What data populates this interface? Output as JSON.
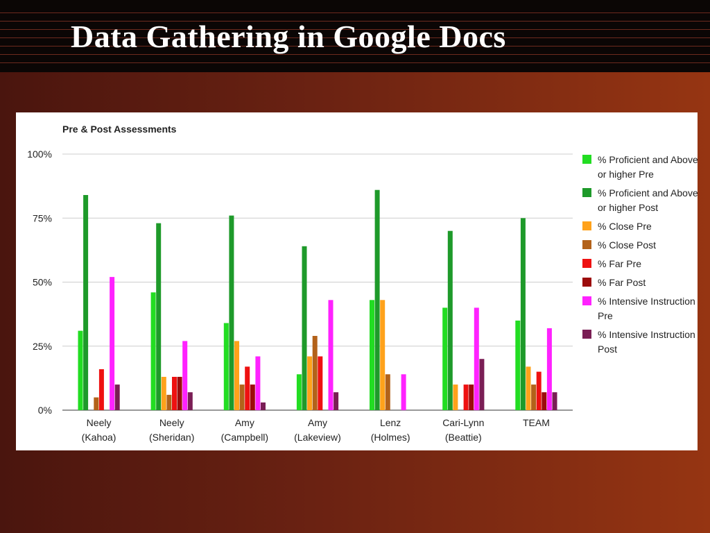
{
  "slide": {
    "title": "Data Gathering in Google Docs"
  },
  "chart_data": {
    "type": "bar",
    "title": "Pre & Post Assessments",
    "xlabel": "",
    "ylabel": "",
    "ylim": [
      0,
      100
    ],
    "y_ticks": [
      "0%",
      "25%",
      "50%",
      "75%",
      "100%"
    ],
    "y_tick_values": [
      0,
      25,
      50,
      75,
      100
    ],
    "grid": true,
    "legend_position": "right",
    "categories": [
      "Neely\n(Kahoa)",
      "Neely\n(Sheridan)",
      "Amy\n(Campbell)",
      "Amy\n(Lakeview)",
      "Lenz\n(Holmes)",
      "Cari-Lynn\n(Beattie)",
      "TEAM"
    ],
    "series": [
      {
        "name": "% Proficient and Above or higher Pre",
        "color": "#22dd22",
        "values": [
          31,
          46,
          34,
          14,
          43,
          40,
          35
        ]
      },
      {
        "name": "% Proficient and Above or higher Post",
        "color": "#1e9a2a",
        "values": [
          84,
          73,
          76,
          64,
          86,
          70,
          75
        ]
      },
      {
        "name": "% Close Pre",
        "color": "#ffa21b",
        "values": [
          0,
          13,
          27,
          21,
          43,
          10,
          17
        ]
      },
      {
        "name": "% Close Post",
        "color": "#b3621a",
        "values": [
          5,
          6,
          10,
          29,
          14,
          0,
          10
        ]
      },
      {
        "name": "% Far Pre",
        "color": "#ee1111",
        "values": [
          16,
          13,
          17,
          21,
          0,
          10,
          15
        ]
      },
      {
        "name": "% Far Post",
        "color": "#9c0c0c",
        "values": [
          0,
          13,
          10,
          0,
          0,
          10,
          7
        ]
      },
      {
        "name": "% Intensive Instruction Pre",
        "color": "#ff22ff",
        "values": [
          52,
          27,
          21,
          43,
          14,
          40,
          32
        ]
      },
      {
        "name": "% Intensive Instruction Post",
        "color": "#7a1e55",
        "values": [
          10,
          7,
          3,
          7,
          0,
          20,
          7
        ]
      }
    ]
  }
}
